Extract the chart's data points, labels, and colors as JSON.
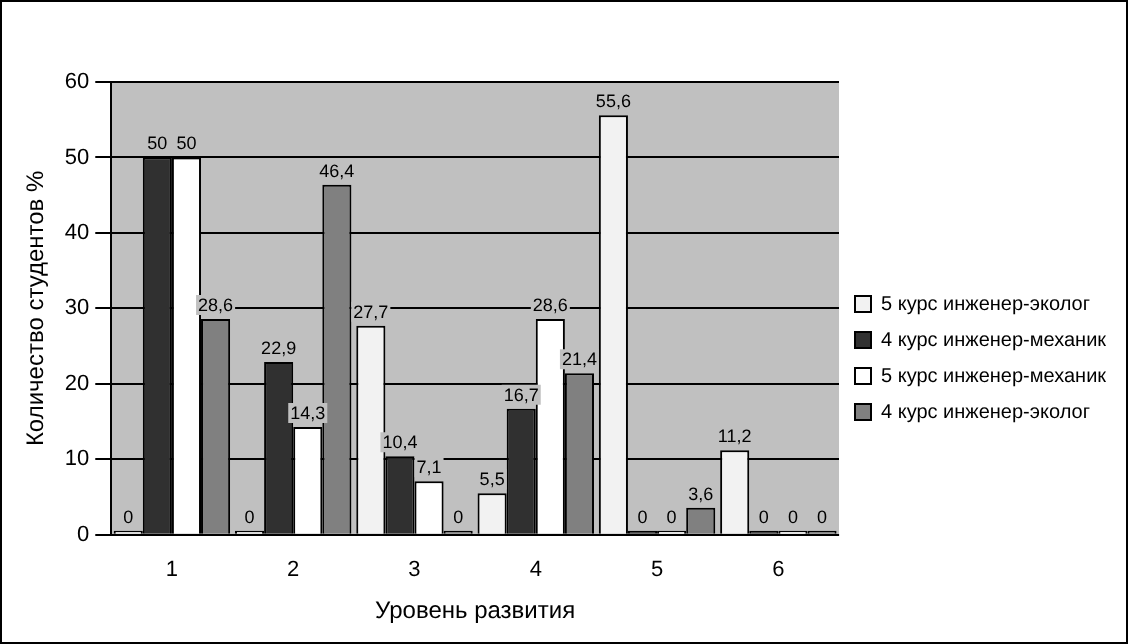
{
  "chart_data": {
    "type": "bar",
    "xlabel": "Уровень развития",
    "ylabel": "Количество студентов %",
    "categories": [
      "1",
      "2",
      "3",
      "4",
      "5",
      "6"
    ],
    "series": [
      {
        "name": "5 курс инженер-эколог",
        "color": "#f2f2f2",
        "values": [
          0,
          0,
          27.7,
          5.5,
          55.6,
          11.2
        ],
        "value_labels": [
          "0",
          "0",
          "27,7",
          "5,5",
          "55,6",
          "11,2"
        ]
      },
      {
        "name": "4 курс инженер-механик",
        "color": "#303030",
        "values": [
          50,
          22.9,
          10.4,
          16.7,
          0,
          0
        ],
        "value_labels": [
          "50",
          "22,9",
          "10,4",
          "16,7",
          "0",
          "0"
        ]
      },
      {
        "name": "5 курс инженер-механик",
        "color": "#ffffff",
        "values": [
          50,
          14.3,
          7.1,
          28.6,
          0,
          0
        ],
        "value_labels": [
          "50",
          "14,3",
          "7,1",
          "28,6",
          "0",
          "0"
        ]
      },
      {
        "name": "4 курс инженер-эколог",
        "color": "#808080",
        "values": [
          28.6,
          46.4,
          0,
          21.4,
          3.6,
          0
        ],
        "value_labels": [
          "28,6",
          "46,4",
          "0",
          "21,4",
          "3,6",
          "0"
        ]
      }
    ],
    "ylim": [
      0,
      60
    ],
    "yticks": [
      0,
      10,
      20,
      30,
      40,
      50,
      60
    ],
    "grid": "y",
    "legend": "right"
  }
}
